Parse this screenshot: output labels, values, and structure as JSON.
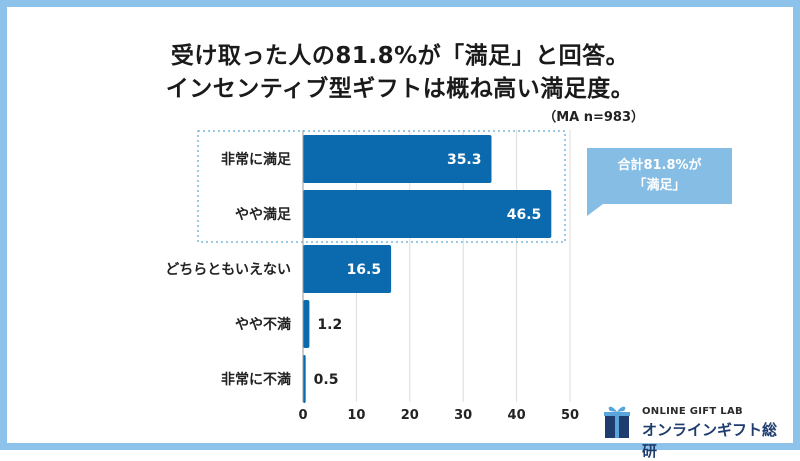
{
  "title_lines": [
    "受け取った人の81.8%が「満足」と回答。",
    "インセンティブ型ギフトは概ね高い満足度。"
  ],
  "sample_note": "（MA n=983）",
  "callout": {
    "line1": "合計81.8%が",
    "line2": "「満足」"
  },
  "logo": {
    "top_text": "ONLINE GIFT LAB",
    "bottom_text": "オンラインギフト総研"
  },
  "colors": {
    "bar": "#0b6aae",
    "callout": "#86bde4",
    "highlight": "#7ab8e2",
    "frame": "#8dc3ea"
  },
  "chart_data": {
    "type": "bar",
    "orientation": "horizontal",
    "categories": [
      "非常に満足",
      "やや満足",
      "どちらともいえない",
      "やや不満",
      "非常に不満"
    ],
    "values": [
      35.3,
      46.5,
      16.5,
      1.2,
      0.5
    ],
    "data_labels": [
      "35.3",
      "46.5",
      "16.5",
      "1.2",
      "0.5"
    ],
    "xlim": [
      0,
      50
    ],
    "xticks": [
      0,
      10,
      20,
      30,
      40,
      50
    ],
    "grid": true,
    "highlight_categories": [
      "非常に満足",
      "やや満足"
    ],
    "unit": "%"
  }
}
